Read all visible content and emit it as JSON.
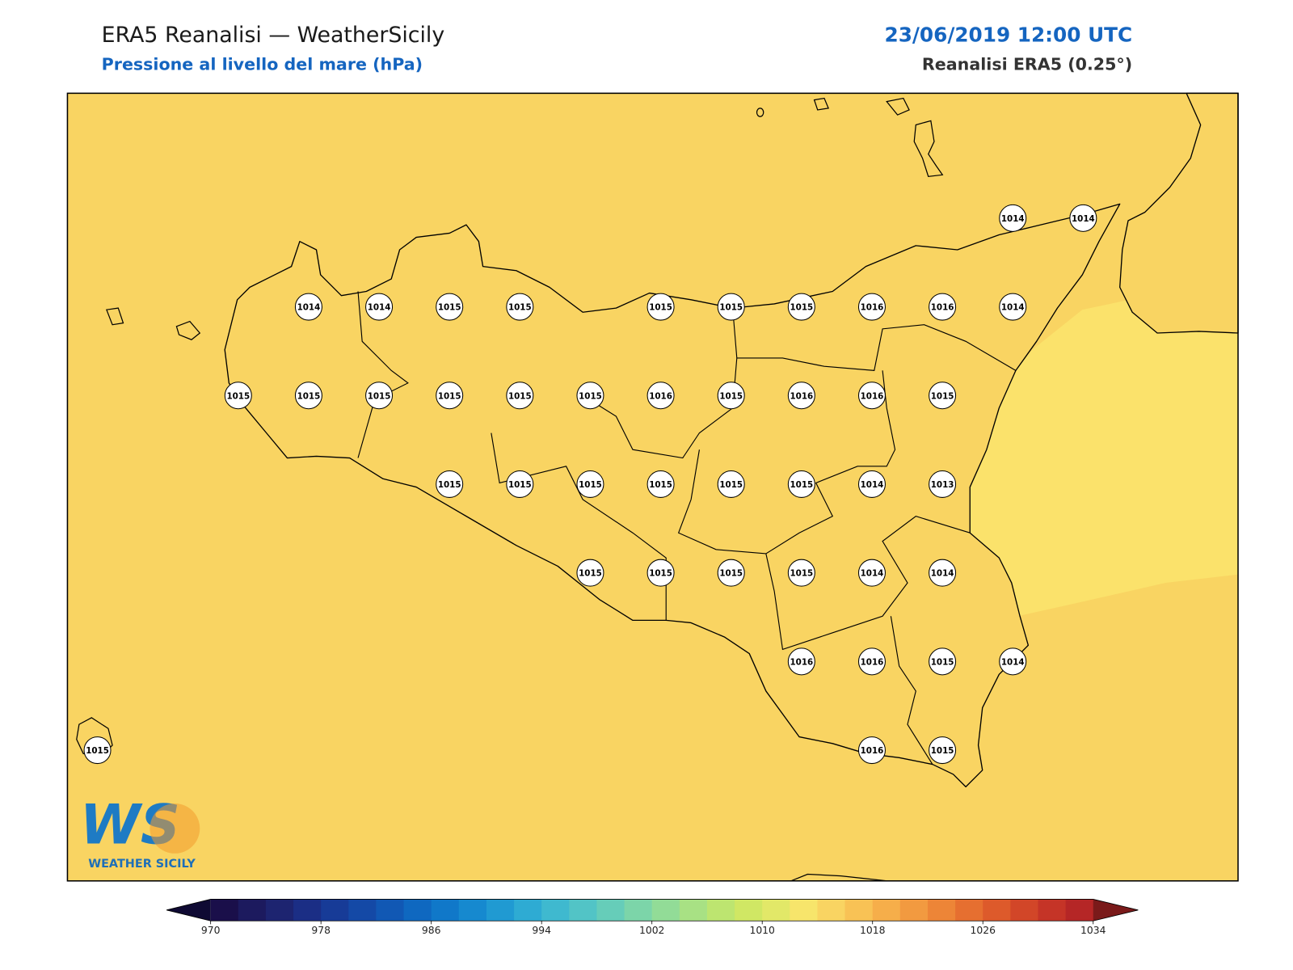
{
  "header": {
    "title": "ERA5 Reanalisi — WeatherSicily",
    "subtitle": "Pressione al livello del mare (hPa)",
    "date": "23/06/2019 12:00 UTC",
    "source": "Reanalisi ERA5 (0.25°)"
  },
  "stations": {
    "rows": [
      [
        null,
        null,
        null,
        null,
        null,
        null,
        null,
        null,
        null,
        null,
        null,
        null,
        null,
        1014,
        1014
      ],
      [
        null,
        null,
        null,
        1014,
        1014,
        1015,
        1015,
        null,
        1015,
        1015,
        1015,
        1016,
        1016,
        1014,
        null
      ],
      [
        null,
        null,
        1015,
        1015,
        1015,
        1015,
        1015,
        1015,
        1016,
        1015,
        1016,
        1016,
        1015,
        null,
        null
      ],
      [
        null,
        null,
        null,
        null,
        null,
        1015,
        1015,
        1015,
        1015,
        1015,
        1015,
        1014,
        1013,
        null,
        null
      ],
      [
        null,
        null,
        null,
        null,
        null,
        null,
        null,
        1015,
        1015,
        1015,
        1015,
        1014,
        1014,
        null,
        null
      ],
      [
        null,
        null,
        null,
        null,
        null,
        null,
        null,
        null,
        null,
        null,
        1016,
        1016,
        1015,
        1014,
        null
      ],
      [
        1015,
        null,
        null,
        null,
        null,
        null,
        null,
        null,
        null,
        null,
        null,
        1016,
        1015,
        null,
        null
      ]
    ]
  },
  "logo": {
    "mark": "WS",
    "text": "WEATHER SICILY"
  },
  "colorbar": {
    "lim": [
      970,
      1034
    ],
    "ticks": [
      970,
      978,
      986,
      994,
      1002,
      1010,
      1018,
      1026,
      1034
    ],
    "colors": [
      "#1a0f4a",
      "#1c1a5e",
      "#1d2470",
      "#1b2e85",
      "#173b97",
      "#1449a6",
      "#1158b4",
      "#0f68c0",
      "#1078c9",
      "#1689cf",
      "#209ad2",
      "#2eabd3",
      "#3fb9cf",
      "#52c4c6",
      "#66cdb9",
      "#7cd5a9",
      "#92dc97",
      "#a8e184",
      "#bde570",
      "#d0e764",
      "#e2e868",
      "#f7e56b",
      "#f9d462",
      "#f8c255",
      "#f6ae4a",
      "#f29a40",
      "#ed8537",
      "#e66f30",
      "#dd5a2b",
      "#d24628",
      "#c53427",
      "#b52626"
    ],
    "under": "#0f0a33",
    "over": "#7a1a1a"
  }
}
